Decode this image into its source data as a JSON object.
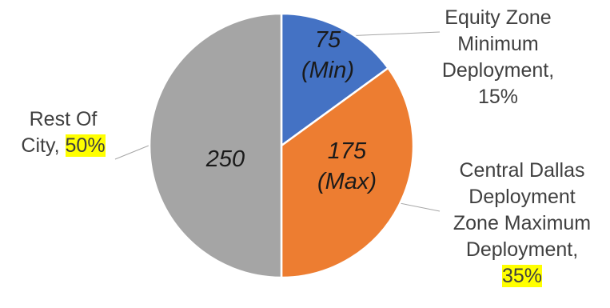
{
  "chart_data": {
    "type": "pie",
    "slices": [
      {
        "name": "Equity Zone Minimum Deployment",
        "value": 75,
        "percent": 15,
        "inner_label": [
          "75",
          "(Min)"
        ],
        "outer_label": [
          "Equity Zone",
          "Minimum",
          "Deployment,"
        ],
        "outer_percent": "15%",
        "percent_highlighted": false,
        "color": "#4472C4"
      },
      {
        "name": "Central Dallas Deployment Zone Maximum Deployment",
        "value": 175,
        "percent": 35,
        "inner_label": [
          "175",
          "(Max)"
        ],
        "outer_label": [
          "Central Dallas",
          "Deployment",
          "Zone Maximum",
          "Deployment,"
        ],
        "outer_percent": "35%",
        "percent_highlighted": true,
        "color": "#ED7D31"
      },
      {
        "name": "Rest Of City",
        "value": 250,
        "percent": 50,
        "inner_label": [
          "250"
        ],
        "outer_label": [
          "Rest Of",
          "City,"
        ],
        "outer_percent": "50%",
        "percent_highlighted": true,
        "color": "#A5A5A5"
      }
    ],
    "start_angle": "12 o'clock",
    "direction": "clockwise",
    "highlight_color": "#FFFF00"
  }
}
